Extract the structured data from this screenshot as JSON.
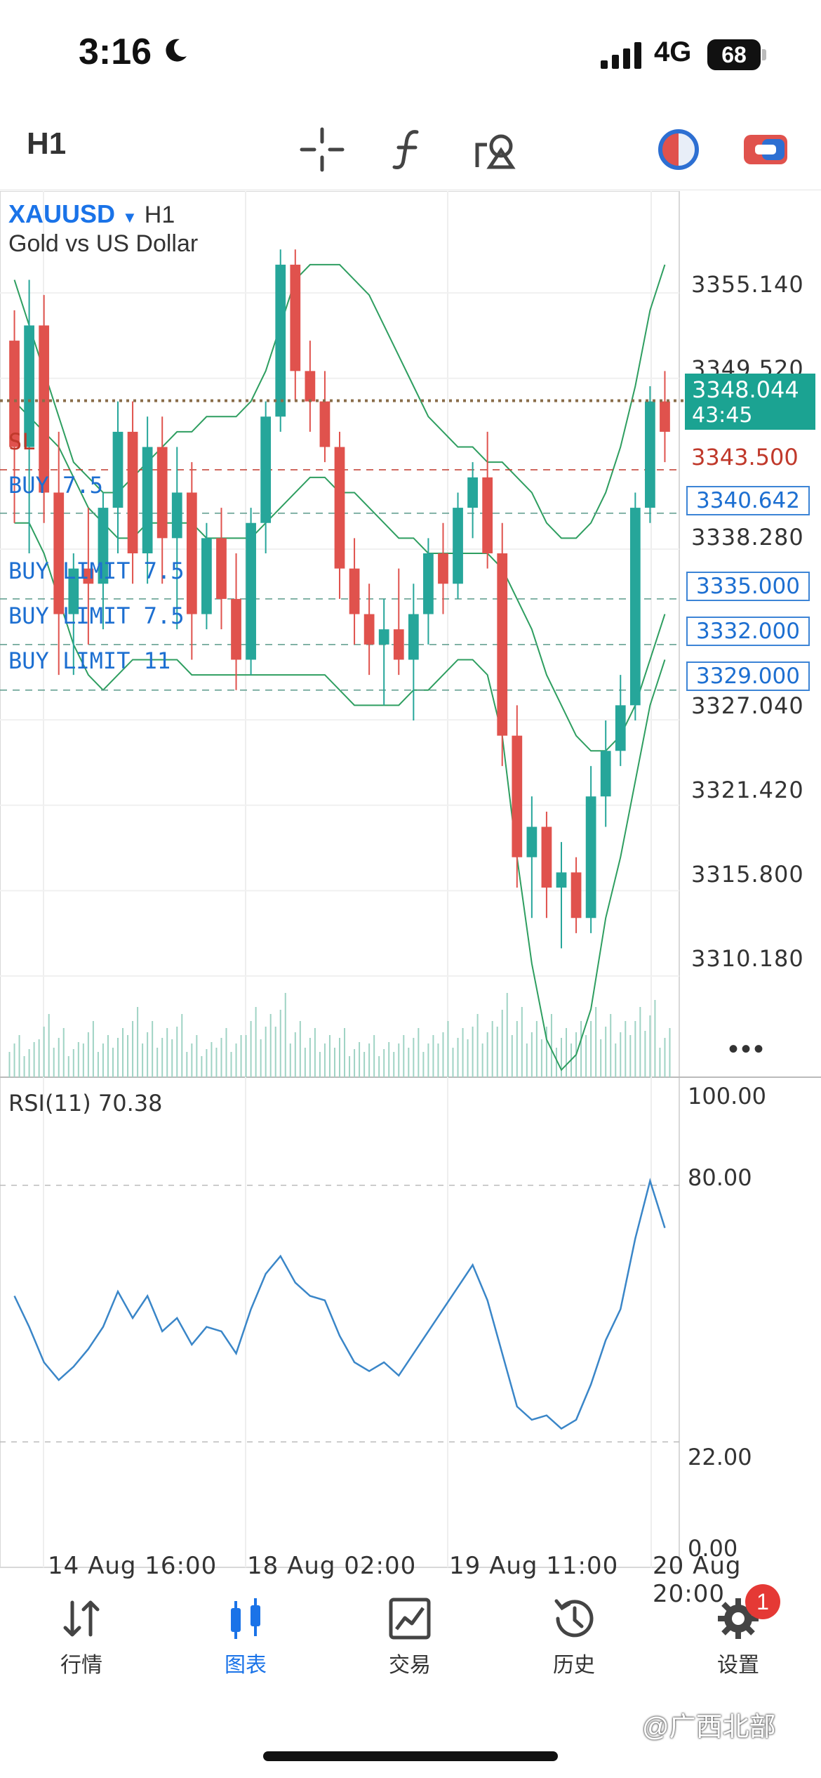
{
  "status_bar": {
    "time": "3:16",
    "network": "4G",
    "battery": "68"
  },
  "toolbar": {
    "timeframe": "H1",
    "tools": [
      "crosshair-icon",
      "indicator-f-icon",
      "objects-icon",
      "color-scheme-icon",
      "toggle-icon"
    ]
  },
  "chart": {
    "symbol": "XAUUSD",
    "timeframe": "H1",
    "description": "Gold vs US Dollar",
    "price_axis": [
      "3355.140",
      "3349.520",
      "3338.280",
      "3327.040",
      "3321.420",
      "3315.800",
      "3310.180"
    ],
    "current_price": "3348.044",
    "countdown": "43:45",
    "stop_loss": {
      "label": "SL",
      "price": "3343.500"
    },
    "orders": [
      {
        "label": "BUY 7.5",
        "price": "3340.642"
      },
      {
        "label": "BUY LIMIT 7.5",
        "price": "3335.000"
      },
      {
        "label": "BUY LIMIT 7.5",
        "price": "3332.000"
      },
      {
        "label": "BUY LIMIT 11",
        "price": "3329.000"
      }
    ],
    "more_label": "•••",
    "time_axis": [
      "14 Aug 16:00",
      "18 Aug 02:00",
      "19 Aug 11:00",
      "20 Aug 20:00"
    ]
  },
  "rsi": {
    "label": "RSI(11) 70.38",
    "levels": [
      "100.00",
      "80.00",
      "22.00",
      "0.00"
    ]
  },
  "chart_data": {
    "type": "candlestick",
    "symbol": "XAUUSD",
    "ylim": [
      3305.0,
      3360.0
    ],
    "candles": [
      {
        "o": 3352,
        "h": 3354,
        "l": 3340,
        "c": 3345
      },
      {
        "o": 3345,
        "h": 3356,
        "l": 3338,
        "c": 3353
      },
      {
        "o": 3353,
        "h": 3355,
        "l": 3340,
        "c": 3342
      },
      {
        "o": 3342,
        "h": 3346,
        "l": 3330,
        "c": 3334
      },
      {
        "o": 3334,
        "h": 3338,
        "l": 3330,
        "c": 3337
      },
      {
        "o": 3337,
        "h": 3341,
        "l": 3332,
        "c": 3336
      },
      {
        "o": 3336,
        "h": 3342,
        "l": 3333,
        "c": 3341
      },
      {
        "o": 3341,
        "h": 3348,
        "l": 3338,
        "c": 3346
      },
      {
        "o": 3346,
        "h": 3348,
        "l": 3336,
        "c": 3338
      },
      {
        "o": 3338,
        "h": 3347,
        "l": 3336,
        "c": 3345
      },
      {
        "o": 3345,
        "h": 3347,
        "l": 3336,
        "c": 3339
      },
      {
        "o": 3339,
        "h": 3345,
        "l": 3333,
        "c": 3342
      },
      {
        "o": 3342,
        "h": 3344,
        "l": 3331,
        "c": 3334
      },
      {
        "o": 3334,
        "h": 3340,
        "l": 3333,
        "c": 3339
      },
      {
        "o": 3339,
        "h": 3341,
        "l": 3333,
        "c": 3335
      },
      {
        "o": 3335,
        "h": 3338,
        "l": 3329,
        "c": 3331
      },
      {
        "o": 3331,
        "h": 3341,
        "l": 3330,
        "c": 3340
      },
      {
        "o": 3340,
        "h": 3348,
        "l": 3338,
        "c": 3347
      },
      {
        "o": 3347,
        "h": 3358,
        "l": 3346,
        "c": 3357
      },
      {
        "o": 3357,
        "h": 3358,
        "l": 3348,
        "c": 3350
      },
      {
        "o": 3350,
        "h": 3352,
        "l": 3346,
        "c": 3348
      },
      {
        "o": 3348,
        "h": 3350,
        "l": 3344,
        "c": 3345
      },
      {
        "o": 3345,
        "h": 3346,
        "l": 3335,
        "c": 3337
      },
      {
        "o": 3337,
        "h": 3339,
        "l": 3332,
        "c": 3334
      },
      {
        "o": 3334,
        "h": 3336,
        "l": 3330,
        "c": 3332
      },
      {
        "o": 3332,
        "h": 3335,
        "l": 3328,
        "c": 3333
      },
      {
        "o": 3333,
        "h": 3337,
        "l": 3330,
        "c": 3331
      },
      {
        "o": 3331,
        "h": 3336,
        "l": 3327,
        "c": 3334
      },
      {
        "o": 3334,
        "h": 3339,
        "l": 3332,
        "c": 3338
      },
      {
        "o": 3338,
        "h": 3340,
        "l": 3334,
        "c": 3336
      },
      {
        "o": 3336,
        "h": 3342,
        "l": 3335,
        "c": 3341
      },
      {
        "o": 3341,
        "h": 3344,
        "l": 3339,
        "c": 3343
      },
      {
        "o": 3343,
        "h": 3346,
        "l": 3337,
        "c": 3338
      },
      {
        "o": 3338,
        "h": 3340,
        "l": 3324,
        "c": 3326
      },
      {
        "o": 3326,
        "h": 3328,
        "l": 3316,
        "c": 3318
      },
      {
        "o": 3318,
        "h": 3322,
        "l": 3314,
        "c": 3320
      },
      {
        "o": 3320,
        "h": 3321,
        "l": 3314,
        "c": 3316
      },
      {
        "o": 3316,
        "h": 3319,
        "l": 3312,
        "c": 3317
      },
      {
        "o": 3317,
        "h": 3318,
        "l": 3313,
        "c": 3314
      },
      {
        "o": 3314,
        "h": 3324,
        "l": 3313,
        "c": 3322
      },
      {
        "o": 3322,
        "h": 3327,
        "l": 3320,
        "c": 3325
      },
      {
        "o": 3325,
        "h": 3330,
        "l": 3324,
        "c": 3328
      },
      {
        "o": 3328,
        "h": 3342,
        "l": 3327,
        "c": 3341
      },
      {
        "o": 3341,
        "h": 3349,
        "l": 3340,
        "c": 3348
      },
      {
        "o": 3348,
        "h": 3350,
        "l": 3344,
        "c": 3346
      }
    ],
    "bollinger": {
      "upper": [
        3356,
        3353,
        3350,
        3347,
        3344,
        3343,
        3342,
        3342,
        3343,
        3344,
        3345,
        3346,
        3346,
        3347,
        3347,
        3347,
        3348,
        3350,
        3353,
        3356,
        3357,
        3357,
        3357,
        3356,
        3355,
        3353,
        3351,
        3349,
        3347,
        3346,
        3345,
        3345,
        3344,
        3344,
        3343,
        3342,
        3340,
        3339,
        3339,
        3340,
        3342,
        3345,
        3349,
        3354,
        3357
      ],
      "middle": [
        3348,
        3347,
        3346,
        3345,
        3343,
        3341,
        3340,
        3339,
        3339,
        3340,
        3340,
        3340,
        3340,
        3339,
        3339,
        3339,
        3339,
        3340,
        3341,
        3342,
        3343,
        3343,
        3342,
        3342,
        3341,
        3340,
        3339,
        3339,
        3338,
        3338,
        3338,
        3338,
        3338,
        3337,
        3335,
        3333,
        3330,
        3328,
        3326,
        3325,
        3325,
        3326,
        3328,
        3331,
        3334
      ],
      "lower": [
        3340,
        3340,
        3338,
        3335,
        3332,
        3330,
        3329,
        3330,
        3331,
        3331,
        3331,
        3331,
        3330,
        3330,
        3330,
        3330,
        3330,
        3330,
        3330,
        3330,
        3330,
        3330,
        3329,
        3328,
        3328,
        3328,
        3328,
        3329,
        3329,
        3330,
        3331,
        3331,
        3330,
        3326,
        3318,
        3311,
        3306,
        3304,
        3305,
        3308,
        3314,
        3318,
        3323,
        3328,
        3331
      ]
    },
    "volume": [
      6,
      5,
      9,
      7,
      5,
      8,
      6,
      7,
      10,
      8,
      7,
      9,
      6,
      5,
      7,
      6,
      10,
      9,
      12,
      8,
      7,
      6,
      7,
      5,
      6,
      5,
      6,
      7,
      6,
      8,
      7,
      9,
      8,
      12,
      10,
      8,
      9,
      7,
      8,
      10,
      9,
      8,
      10,
      11,
      7
    ],
    "rsi": [
      55,
      48,
      40,
      36,
      39,
      43,
      48,
      56,
      50,
      55,
      47,
      50,
      44,
      48,
      47,
      42,
      52,
      60,
      64,
      58,
      55,
      54,
      46,
      40,
      38,
      40,
      37,
      42,
      47,
      52,
      57,
      62,
      54,
      42,
      30,
      27,
      28,
      25,
      27,
      35,
      45,
      52,
      68,
      81,
      70.38
    ],
    "rsi_levels": [
      80,
      22
    ],
    "legend": []
  },
  "tabs": [
    {
      "label": "行情",
      "icon": "quotes-arrows-icon",
      "active": false
    },
    {
      "label": "图表",
      "icon": "chart-candles-icon",
      "active": true
    },
    {
      "label": "交易",
      "icon": "trade-icon",
      "active": false
    },
    {
      "label": "历史",
      "icon": "history-icon",
      "active": false
    },
    {
      "label": "设置",
      "icon": "settings-gear-icon",
      "active": false,
      "badge": "1"
    }
  ],
  "watermark": "@广西北部",
  "colors": {
    "bull": "#26a69a",
    "bear": "#e0524d",
    "band": "#2e9e60",
    "rsi": "#3a86c8",
    "order": "#1d6fd1",
    "sl": "#c0392b",
    "price_tag": "#1ba392"
  }
}
